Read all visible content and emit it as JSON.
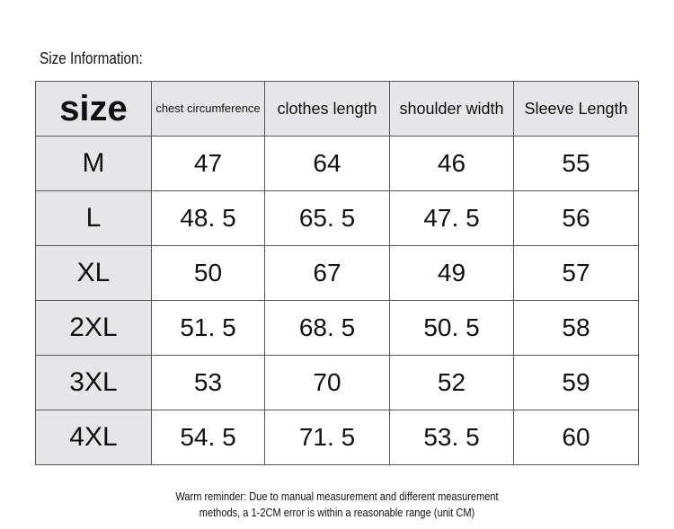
{
  "title": "Size Information:",
  "headers": [
    "size",
    "chest circumference",
    "clothes length",
    "shoulder width",
    "Sleeve Length"
  ],
  "rows": [
    [
      "M",
      "47",
      "64",
      "46",
      "55"
    ],
    [
      "L",
      "48. 5",
      "65. 5",
      "47. 5",
      "56"
    ],
    [
      "XL",
      "50",
      "67",
      "49",
      "57"
    ],
    [
      "2XL",
      "51. 5",
      "68. 5",
      "50. 5",
      "58"
    ],
    [
      "3XL",
      "53",
      "70",
      "52",
      "59"
    ],
    [
      "4XL",
      "54. 5",
      "71. 5",
      "53. 5",
      "60"
    ]
  ],
  "note_line1": "Warm reminder: Due to manual measurement and different measurement",
  "note_line2": "methods, a 1-2CM error is within a reasonable range (unit CM)",
  "colors": {
    "header_bg": "#e6e6ea",
    "border": "#555555"
  }
}
